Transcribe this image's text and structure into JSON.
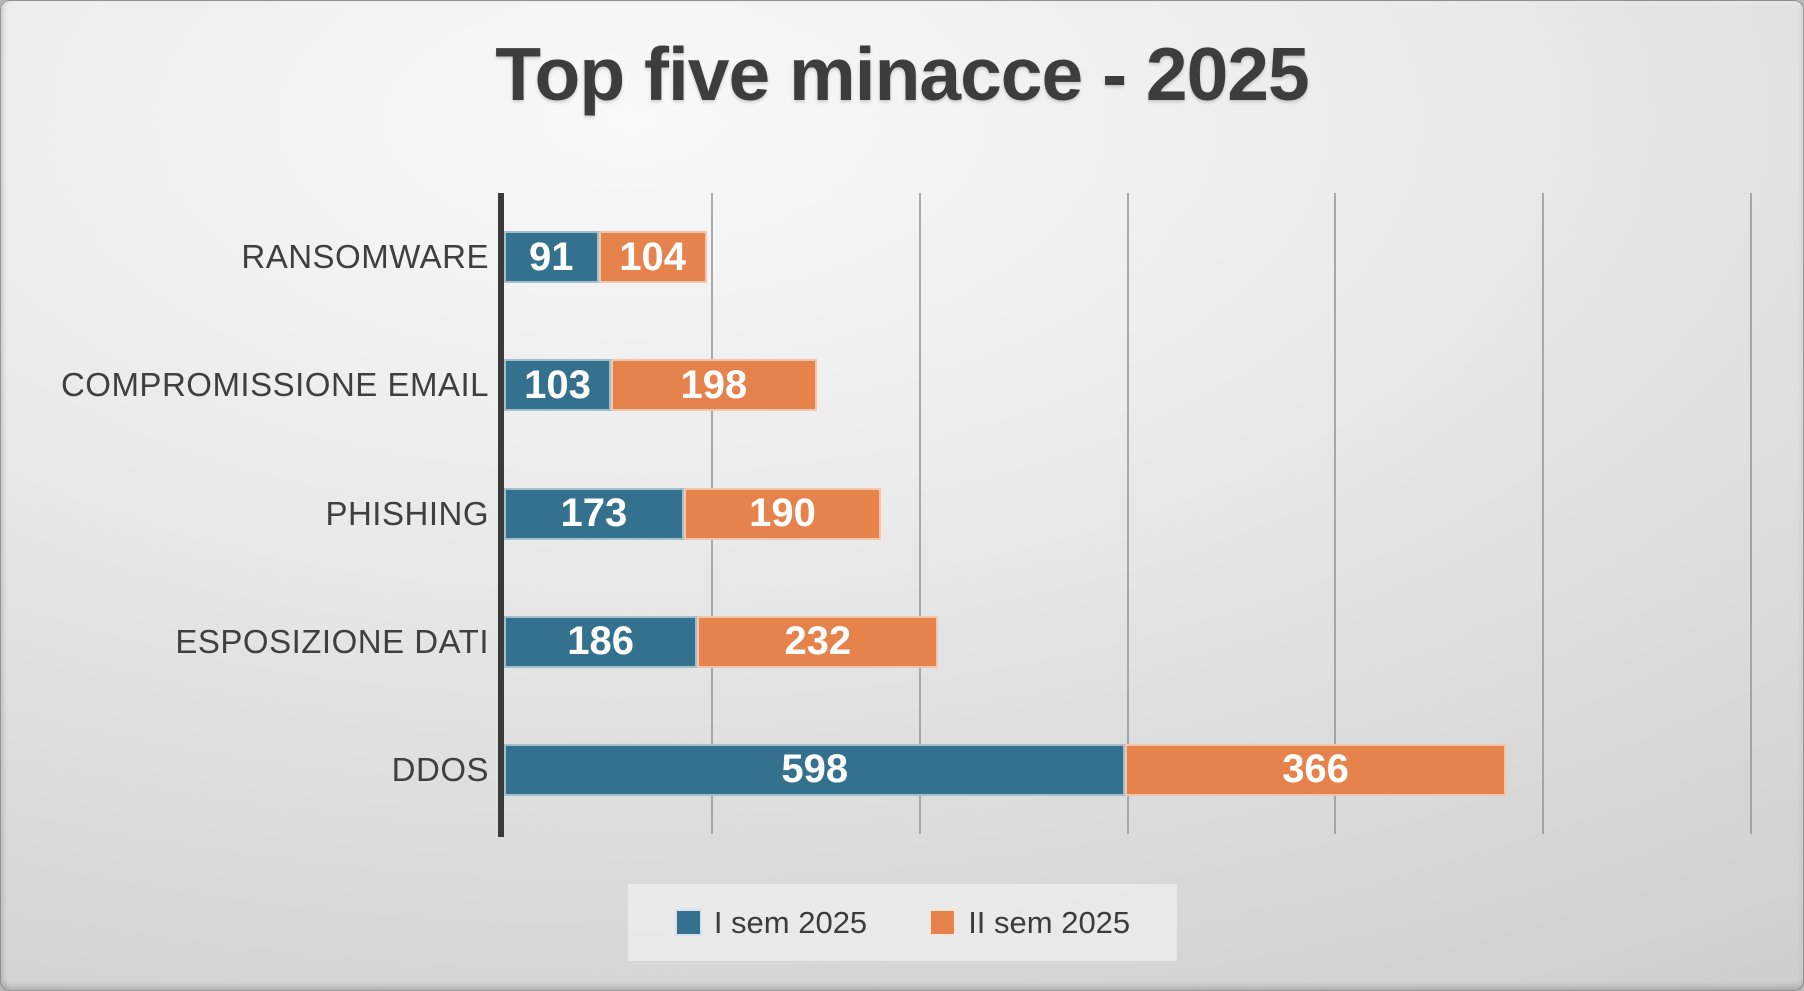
{
  "chart_data": {
    "type": "bar",
    "orientation": "horizontal_stacked",
    "title": "Top five minacce - 2025",
    "categories": [
      "RANSOMWARE",
      "COMPROMISSIONE EMAIL",
      "PHISHING",
      "ESPOSIZIONE DATI",
      "DDOS"
    ],
    "series": [
      {
        "name": "I sem 2025",
        "color": "#33718F",
        "values": [
          91,
          103,
          173,
          186,
          598
        ]
      },
      {
        "name": "II sem 2025",
        "color": "#E6824B",
        "values": [
          104,
          198,
          190,
          232,
          366
        ]
      }
    ],
    "x_axis": {
      "min": 0,
      "max": 1200,
      "gridline_step": 200,
      "tick_labels_visible": false
    },
    "ylabel": "",
    "xlabel": "",
    "grid": true,
    "legend": {
      "position": "bottom",
      "entries": [
        "I sem 2025",
        "II sem 2025"
      ]
    },
    "colors": {
      "series1": "#33718F",
      "series2": "#E6824B",
      "title_text": "#3d3d3d",
      "axis_line": "#3a3a3a",
      "gridline": "#919191",
      "category_text": "#3f3f3f",
      "value_text": "#ffffff",
      "legend_background": "#ececec"
    }
  }
}
